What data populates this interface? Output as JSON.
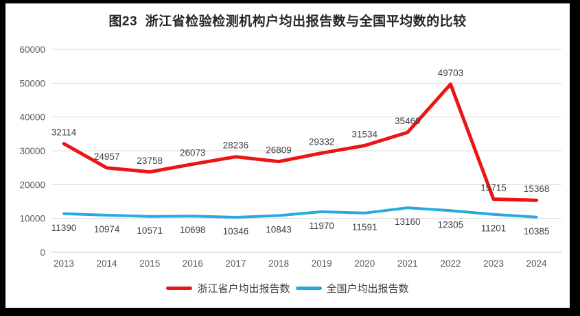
{
  "chart_data": {
    "type": "line",
    "title": "图23  浙江省检验检测机构户均出报告数与全国平均数的比较",
    "categories": [
      "2013",
      "2014",
      "2015",
      "2016",
      "2017",
      "2018",
      "2019",
      "2020",
      "2021",
      "2022",
      "2023",
      "2024"
    ],
    "series": [
      {
        "name": "浙江省户均出报告数",
        "color": "#ec1515",
        "values": [
          32114,
          24957,
          23758,
          26073,
          28236,
          26809,
          29332,
          31534,
          35460,
          49703,
          15715,
          15368
        ],
        "label_position": "above"
      },
      {
        "name": "全国户均出报告数",
        "color": "#29a9e1",
        "values": [
          11390,
          10974,
          10571,
          10698,
          10346,
          10843,
          11970,
          11591,
          13160,
          12305,
          11201,
          10385
        ],
        "label_position": "below"
      }
    ],
    "xlabel": "",
    "ylabel": "",
    "ylim": [
      0,
      60000
    ],
    "yticks": [
      0,
      10000,
      20000,
      30000,
      40000,
      50000,
      60000
    ],
    "grid": true,
    "legend_position": "bottom",
    "colors": {
      "gridline": "#d9d9d9",
      "axis_line": "#c9c9c9",
      "tick_label": "#595959",
      "data_label": "#3f3f3f",
      "title": "#262626",
      "background": "#ffffff",
      "frame": "#000000"
    }
  }
}
